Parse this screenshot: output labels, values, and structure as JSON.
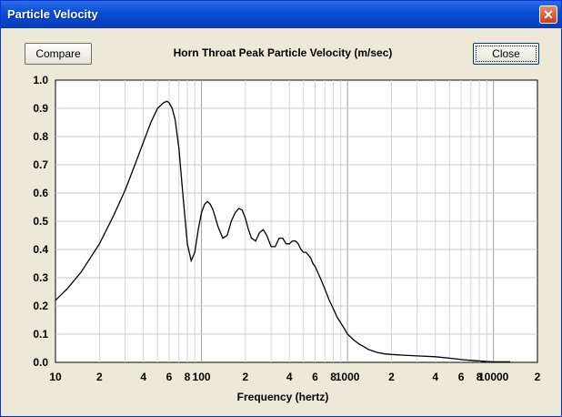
{
  "window": {
    "title": "Particle Velocity",
    "close_icon": "✕"
  },
  "buttons": {
    "compare": "Compare",
    "close": "Close"
  },
  "chart_data": {
    "type": "line",
    "title": "Horn Throat Peak Particle Velocity (m/sec)",
    "xlabel": "Frequency (hertz)",
    "ylabel": "",
    "xscale": "log",
    "xlim": [
      10,
      20000
    ],
    "ylim": [
      0,
      1.0
    ],
    "grid": true,
    "y_ticks": [
      "0.0",
      "0.1",
      "0.2",
      "0.3",
      "0.4",
      "0.5",
      "0.6",
      "0.7",
      "0.8",
      "0.9",
      "1.0"
    ],
    "x_ticks": [
      {
        "v": 10,
        "label": "10"
      },
      {
        "v": 20,
        "label": "2"
      },
      {
        "v": 40,
        "label": "4"
      },
      {
        "v": 60,
        "label": "6"
      },
      {
        "v": 80,
        "label": "8"
      },
      {
        "v": 100,
        "label": "100"
      },
      {
        "v": 200,
        "label": "2"
      },
      {
        "v": 400,
        "label": "4"
      },
      {
        "v": 600,
        "label": "6"
      },
      {
        "v": 800,
        "label": "8"
      },
      {
        "v": 1000,
        "label": "1000"
      },
      {
        "v": 2000,
        "label": "2"
      },
      {
        "v": 4000,
        "label": "4"
      },
      {
        "v": 6000,
        "label": "6"
      },
      {
        "v": 8000,
        "label": "8"
      },
      {
        "v": 10000,
        "label": "10000"
      },
      {
        "v": 20000,
        "label": "2"
      }
    ],
    "series": [
      {
        "x": [
          10,
          12,
          15,
          20,
          25,
          30,
          35,
          40,
          45,
          50,
          55,
          58,
          60,
          63,
          66,
          70,
          75,
          80,
          85,
          90,
          95,
          100,
          105,
          110,
          115,
          120,
          130,
          140,
          150,
          160,
          170,
          180,
          190,
          200,
          210,
          220,
          235,
          250,
          265,
          280,
          300,
          320,
          340,
          360,
          380,
          400,
          420,
          440,
          460,
          480,
          500,
          520,
          540,
          560,
          580,
          600,
          650,
          700,
          750,
          800,
          850,
          900,
          950,
          1000,
          1100,
          1200,
          1300,
          1400,
          1500,
          1600,
          1800,
          2000,
          2500,
          3000,
          4000,
          5000,
          6000,
          7000,
          8000,
          9000,
          10000,
          11000,
          12000,
          13000
        ],
        "y": [
          0.22,
          0.26,
          0.32,
          0.42,
          0.52,
          0.61,
          0.7,
          0.78,
          0.85,
          0.9,
          0.92,
          0.925,
          0.92,
          0.9,
          0.86,
          0.76,
          0.58,
          0.42,
          0.36,
          0.39,
          0.47,
          0.53,
          0.56,
          0.57,
          0.56,
          0.54,
          0.48,
          0.44,
          0.45,
          0.5,
          0.53,
          0.545,
          0.54,
          0.51,
          0.47,
          0.44,
          0.43,
          0.46,
          0.47,
          0.45,
          0.41,
          0.41,
          0.44,
          0.44,
          0.42,
          0.42,
          0.43,
          0.43,
          0.42,
          0.4,
          0.39,
          0.39,
          0.38,
          0.37,
          0.35,
          0.34,
          0.3,
          0.26,
          0.22,
          0.19,
          0.16,
          0.14,
          0.12,
          0.1,
          0.08,
          0.065,
          0.055,
          0.045,
          0.04,
          0.035,
          0.03,
          0.028,
          0.025,
          0.023,
          0.02,
          0.015,
          0.01,
          0.007,
          0.005,
          0.003,
          0.002,
          0.002,
          0.002,
          0.002
        ]
      }
    ]
  }
}
